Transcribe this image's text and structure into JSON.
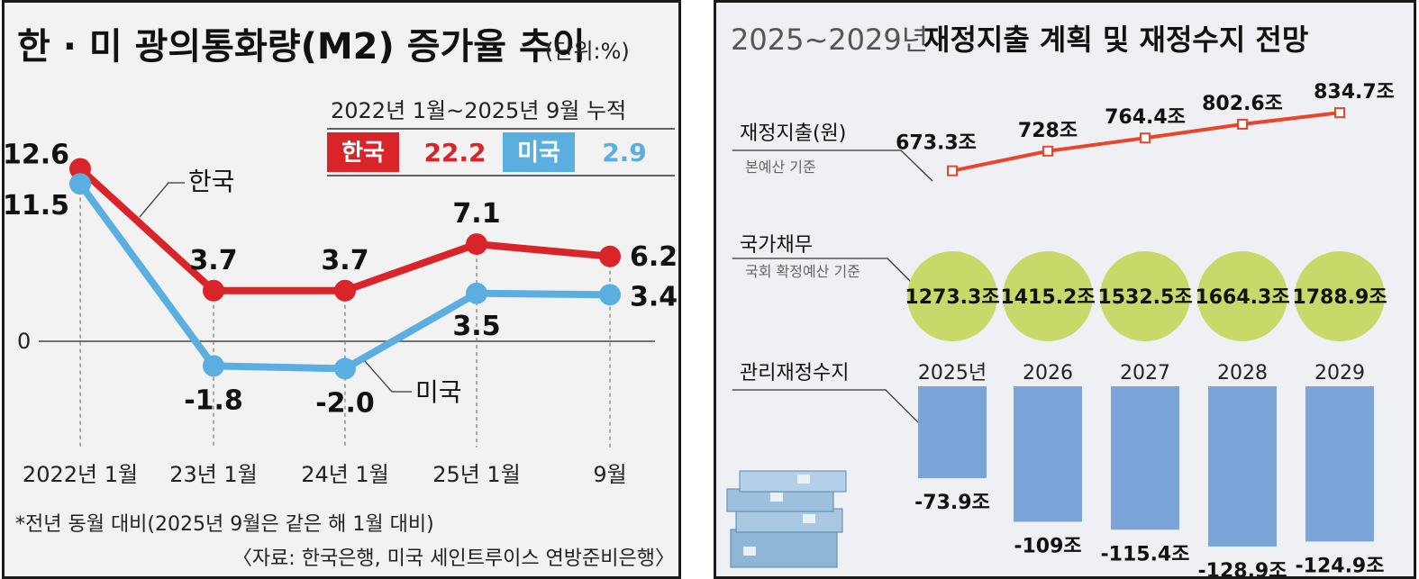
{
  "left": {
    "title": "한 · 미 광의통화량(M2) 증가율 추이",
    "unit": "(단위:%)",
    "cumulative_label": "2022년 1월~2025년 9월 누적",
    "legend": [
      {
        "name": "한국",
        "value": "22.2",
        "color": "#d9252a"
      },
      {
        "name": "미국",
        "value": "2.9",
        "color": "#5aafe0"
      }
    ],
    "footnote": "*전년 동월 대비(2025년 9월은 같은 해 1월 대비)",
    "source": "〈자료: 한국은행, 미국 세인트루이스 연방준비은행〉"
  },
  "right": {
    "title_years": "2025~2029년",
    "title_main": "재정지출 계획 및 재정수지 전망",
    "spending_label": "재정지출(원)",
    "spending_sub": "본예산 기준",
    "debt_label": "국가채무",
    "debt_sub": "국회 확정예산 기준",
    "balance_label": "관리재정수지"
  },
  "chart_data": [
    {
      "type": "line",
      "title": "한 · 미 광의통화량(M2) 증가율 추이",
      "unit": "%",
      "categories": [
        "2022년 1월",
        "23년 1월",
        "24년 1월",
        "25년 1월",
        "9월"
      ],
      "zero_label": "0",
      "series": [
        {
          "name": "한국",
          "color": "#d9252a",
          "values": [
            12.6,
            3.7,
            3.7,
            7.1,
            6.2
          ],
          "labels": [
            "12.6",
            "3.7",
            "3.7",
            "7.1",
            "6.2"
          ]
        },
        {
          "name": "미국",
          "color": "#5aafe0",
          "values": [
            11.5,
            -1.8,
            -2.0,
            3.5,
            3.4
          ],
          "labels": [
            "11.5",
            "-1.8",
            "-2.0",
            "3.5",
            "3.4"
          ]
        }
      ],
      "ylim": [
        -5,
        15
      ],
      "grid": false,
      "legend": "top-right"
    },
    {
      "type": "line",
      "title": "재정지출",
      "unit": "조 원",
      "categories": [
        "2025년",
        "2026",
        "2027",
        "2028",
        "2029"
      ],
      "series": [
        {
          "name": "재정지출",
          "color": "#e8452a",
          "values": [
            673.3,
            728,
            764.4,
            802.6,
            834.7
          ],
          "labels": [
            "673.3조",
            "728조",
            "764.4조",
            "802.6조",
            "834.7조"
          ]
        }
      ]
    },
    {
      "type": "bubble",
      "title": "국가채무",
      "unit": "조 원",
      "categories": [
        "2025년",
        "2026",
        "2027",
        "2028",
        "2029"
      ],
      "values": [
        1273.3,
        1415.2,
        1532.5,
        1664.3,
        1788.9
      ],
      "labels": [
        "1273.3조",
        "1415.2조",
        "1532.5조",
        "1664.3조",
        "1788.9조"
      ],
      "color": "#c8d96a"
    },
    {
      "type": "bar",
      "title": "관리재정수지",
      "unit": "조 원",
      "categories": [
        "2025년",
        "2026",
        "2027",
        "2028",
        "2029"
      ],
      "values": [
        -73.9,
        -109,
        -115.4,
        -128.9,
        -124.9
      ],
      "labels": [
        "-73.9조",
        "-109조",
        "-115.4조",
        "-128.9조",
        "-124.9조"
      ],
      "color": "#7ba4d9"
    }
  ]
}
